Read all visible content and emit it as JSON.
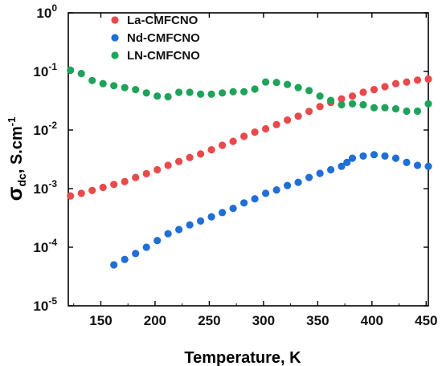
{
  "chart_data": {
    "type": "scatter",
    "xlabel": "Temperature, K",
    "ylabel": {
      "main": "σ",
      "sub": "dc",
      "rest": ", S.cm",
      "sup": "-1"
    },
    "xlim": [
      120,
      452
    ],
    "ylim_log10": [
      -5,
      0
    ],
    "y_scale": "log",
    "xticks": [
      150,
      200,
      250,
      300,
      350,
      400,
      450
    ],
    "yticks": [
      {
        "exp": -5,
        "mantissa": "10",
        "power": "-5"
      },
      {
        "exp": -4,
        "mantissa": "10",
        "power": "-4"
      },
      {
        "exp": -3,
        "mantissa": "10",
        "power": "-3"
      },
      {
        "exp": -2,
        "mantissa": "10",
        "power": "-2"
      },
      {
        "exp": -1,
        "mantissa": "10",
        "power": "-1"
      },
      {
        "exp": 0,
        "mantissa": "10",
        "power": "0"
      }
    ],
    "legend_position": "top-left",
    "series": [
      {
        "name": "La-CMFCNO",
        "color": "#e84a4a",
        "x": [
          122,
          132,
          142,
          152,
          162,
          172,
          182,
          192,
          202,
          212,
          222,
          232,
          242,
          252,
          262,
          272,
          282,
          292,
          302,
          312,
          322,
          332,
          342,
          352,
          362,
          372,
          382,
          392,
          402,
          412,
          422,
          432,
          442,
          452
        ],
        "y": [
          0.00075,
          0.00083,
          0.00093,
          0.00105,
          0.00118,
          0.00132,
          0.00155,
          0.0018,
          0.0021,
          0.0025,
          0.0029,
          0.0034,
          0.0039,
          0.0046,
          0.0055,
          0.0064,
          0.0078,
          0.0092,
          0.0105,
          0.0124,
          0.0148,
          0.0172,
          0.0208,
          0.0251,
          0.0295,
          0.034,
          0.038,
          0.044,
          0.049,
          0.055,
          0.062,
          0.066,
          0.071,
          0.074
        ]
      },
      {
        "name": "Nd-CMFCNO",
        "color": "#1f6fd6",
        "x": [
          162,
          172,
          182,
          192,
          202,
          212,
          222,
          232,
          242,
          252,
          262,
          272,
          282,
          292,
          302,
          312,
          322,
          332,
          342,
          352,
          362,
          372,
          377,
          382,
          392,
          402,
          412,
          422,
          432,
          442,
          452
        ],
        "y": [
          5e-05,
          6.2e-05,
          7.8e-05,
          0.0001,
          0.00013,
          0.00017,
          0.0002,
          0.00024,
          0.00028,
          0.00033,
          0.00039,
          0.00046,
          0.00057,
          0.00067,
          0.00083,
          0.00095,
          0.00113,
          0.00128,
          0.00155,
          0.00182,
          0.0021,
          0.0024,
          0.0028,
          0.0033,
          0.0036,
          0.0038,
          0.0036,
          0.0033,
          0.0028,
          0.0025,
          0.0024
        ]
      },
      {
        "name": "LN-CMFCNO",
        "color": "#1fa35a",
        "x": [
          122,
          132,
          142,
          152,
          162,
          172,
          182,
          192,
          202,
          212,
          222,
          232,
          242,
          252,
          262,
          272,
          282,
          292,
          302,
          312,
          322,
          332,
          342,
          352,
          362,
          372,
          382,
          392,
          402,
          412,
          422,
          432,
          442,
          452
        ],
        "y": [
          0.105,
          0.092,
          0.07,
          0.062,
          0.057,
          0.053,
          0.049,
          0.043,
          0.038,
          0.037,
          0.044,
          0.044,
          0.041,
          0.041,
          0.043,
          0.045,
          0.045,
          0.05,
          0.066,
          0.065,
          0.06,
          0.053,
          0.047,
          0.038,
          0.032,
          0.027,
          0.028,
          0.027,
          0.024,
          0.024,
          0.023,
          0.021,
          0.021,
          0.028
        ]
      }
    ]
  }
}
